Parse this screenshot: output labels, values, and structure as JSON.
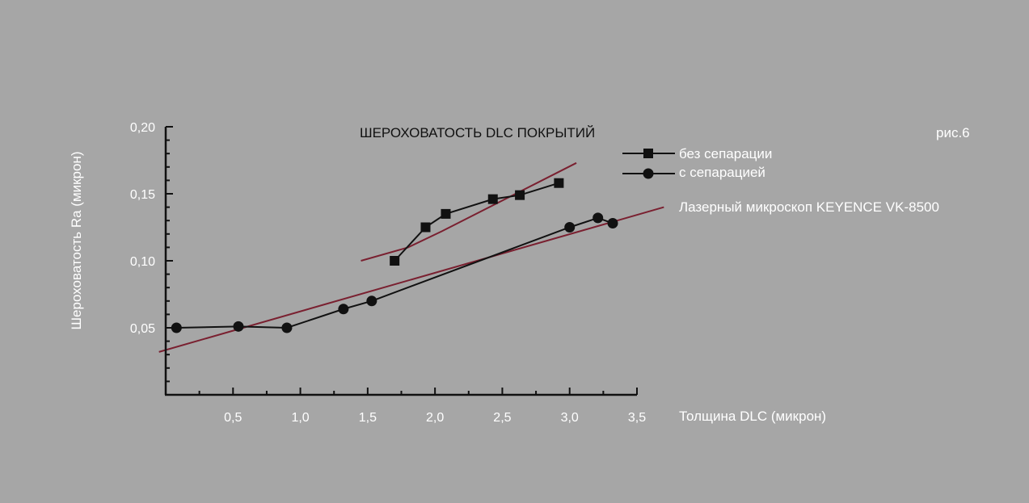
{
  "chart_data": {
    "type": "line",
    "title": "ШЕРОХОВАТОСТЬ DLC ПОКРЫТИЙ",
    "figure_label": "рис.6",
    "note": "Лазерный микроскоп KEYENCE VK-8500",
    "xlabel": "Толщина DLC (микрон)",
    "ylabel": "Шероховатость Ra (микрон)",
    "xlim": [
      0,
      3.5
    ],
    "ylim": [
      0,
      0.2
    ],
    "x_ticks": [
      0.5,
      1.0,
      1.5,
      2.0,
      2.5,
      3.0,
      3.5
    ],
    "x_tick_labels": [
      "0,5",
      "1,0",
      "1,5",
      "2,0",
      "2,5",
      "3,0",
      "3,5"
    ],
    "y_ticks": [
      0.05,
      0.1,
      0.15,
      0.2
    ],
    "y_tick_labels": [
      "0,05",
      "0,10",
      "0,15",
      "0,20"
    ],
    "grid": false,
    "legend_position": "right",
    "series": [
      {
        "name": "без сепарации",
        "marker": "square",
        "color": "#111111",
        "x": [
          1.7,
          1.93,
          2.08,
          2.43,
          2.63,
          2.92
        ],
        "y": [
          0.1,
          0.125,
          0.135,
          0.146,
          0.149,
          0.158
        ]
      },
      {
        "name": "с сепарацией",
        "marker": "circle",
        "color": "#111111",
        "x": [
          0.08,
          0.54,
          0.9,
          1.32,
          1.53,
          3.0,
          3.21,
          3.32
        ],
        "y": [
          0.05,
          0.051,
          0.05,
          0.064,
          0.07,
          0.125,
          0.132,
          0.128
        ]
      }
    ],
    "trend_lines": [
      {
        "color": "#7a2030",
        "x": [
          1.45,
          1.8,
          2.05,
          3.05
        ],
        "y": [
          0.1,
          0.11,
          0.122,
          0.173
        ]
      },
      {
        "color": "#7a2030",
        "x": [
          -0.05,
          3.7
        ],
        "y": [
          0.032,
          0.14
        ]
      }
    ]
  }
}
